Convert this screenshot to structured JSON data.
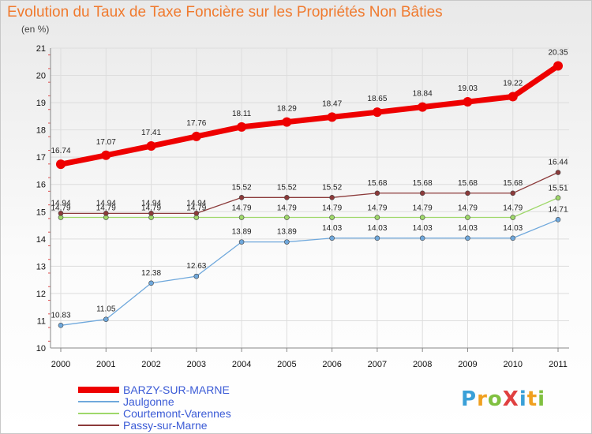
{
  "title": "Evolution du Taux de Taxe Foncière sur les Propriétés Non Bâties",
  "subtitle": "(en %)",
  "logo": {
    "text": "ProXiti",
    "letters": [
      {
        "ch": "P",
        "color": "#3aa0d8"
      },
      {
        "ch": "r",
        "color": "#f0a020"
      },
      {
        "ch": "o",
        "color": "#80c040"
      },
      {
        "ch": "X",
        "color": "#e04040"
      },
      {
        "ch": "i",
        "color": "#3aa0d8"
      },
      {
        "ch": "t",
        "color": "#f0a020"
      },
      {
        "ch": "i",
        "color": "#80c040"
      }
    ]
  },
  "chart_data": {
    "type": "line",
    "title": "Evolution du Taux de Taxe Foncière sur les Propriétés Non Bâties",
    "ylabel": "(en %)",
    "xlabel": "",
    "ylim": [
      10,
      21
    ],
    "y_ticks": [
      "10",
      "11",
      "12",
      "13",
      "14",
      "15",
      "16",
      "17",
      "18",
      "19",
      "20",
      "21"
    ],
    "x": [
      "2000",
      "2001",
      "2002",
      "2003",
      "2004",
      "2005",
      "2006",
      "2007",
      "2008",
      "2009",
      "2010",
      "2011"
    ],
    "legend_position": "bottom-left",
    "series": [
      {
        "name": "BARZY-SUR-MARNE",
        "color": "#ee0000",
        "values": [
          16.74,
          17.07,
          17.41,
          17.76,
          18.11,
          18.29,
          18.47,
          18.65,
          18.84,
          19.03,
          19.22,
          20.35
        ],
        "labels": [
          "16.74",
          "17.07",
          "17.41",
          "17.76",
          "18.11",
          "18.29",
          "18.47",
          "18.65",
          "18.84",
          "19.03",
          "19.22",
          "20.35"
        ]
      },
      {
        "name": "Jaulgonne",
        "color": "#6fa8dc",
        "values": [
          10.83,
          11.05,
          12.38,
          12.63,
          13.89,
          13.89,
          14.03,
          14.03,
          14.03,
          14.03,
          14.03,
          14.71
        ],
        "labels": [
          "10.83",
          "11.05",
          "12.38",
          "12.63",
          "13.89",
          "13.89",
          "14.03",
          "14.03",
          "14.03",
          "14.03",
          "14.03",
          "14.71"
        ]
      },
      {
        "name": "Courtemont-Varennes",
        "color": "#9fd86a",
        "values": [
          14.79,
          14.79,
          14.79,
          14.79,
          14.79,
          14.79,
          14.79,
          14.79,
          14.79,
          14.79,
          14.79,
          15.51
        ],
        "labels": [
          "14.79",
          "14.79",
          "14.79",
          "14.79",
          "14.79",
          "14.79",
          "14.79",
          "14.79",
          "14.79",
          "14.79",
          "14.79",
          "15.51"
        ]
      },
      {
        "name": "Passy-sur-Marne",
        "color": "#8b3a3a",
        "values": [
          14.94,
          14.94,
          14.94,
          14.94,
          15.52,
          15.52,
          15.52,
          15.68,
          15.68,
          15.68,
          15.68,
          16.44
        ],
        "labels": [
          "14.94",
          "14.94",
          "14.94",
          "14.94",
          "15.52",
          "15.52",
          "15.52",
          "15.68",
          "15.68",
          "15.68",
          "15.68",
          "16.44"
        ]
      }
    ]
  }
}
